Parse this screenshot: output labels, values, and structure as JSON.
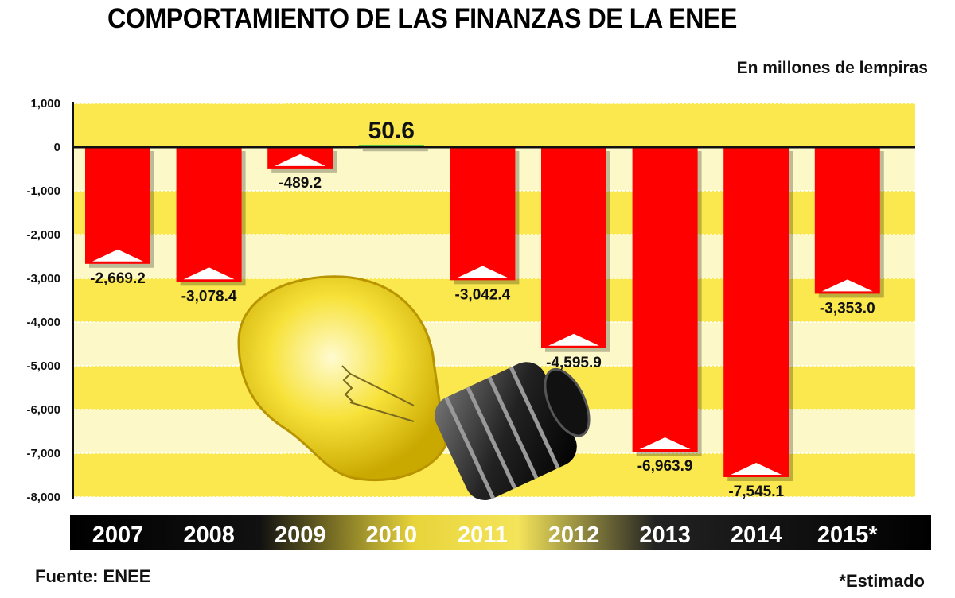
{
  "title": "COMPORTAMIENTO DE LAS FINANZAS DE LA ENEE",
  "units": "En millones de lempiras",
  "source": "Fuente: ENEE",
  "note": "*Estimado",
  "chart_data": {
    "type": "bar",
    "title": "COMPORTAMIENTO DE LAS FINANZAS DE LA ENEE",
    "subtitle": "En millones de lempiras",
    "categories": [
      "2007",
      "2008",
      "2009",
      "2010",
      "2011",
      "2012",
      "2013",
      "2014",
      "2015*"
    ],
    "values": [
      -2669.2,
      -3078.4,
      -489.2,
      50.6,
      -3042.4,
      -4595.9,
      -6963.9,
      -7545.1,
      -3353.0
    ],
    "data_labels": [
      "-2,669.2",
      "-3,078.4",
      "-489.2",
      "50.6",
      "-3,042.4",
      "-4,595.9",
      "-6,963.9",
      "-7,545.1",
      "-3,353.0"
    ],
    "ylim": [
      -8000,
      1000
    ],
    "yticks": [
      1000,
      0,
      -1000,
      -2000,
      -3000,
      -4000,
      -5000,
      -6000,
      -7000,
      -8000
    ],
    "ytick_labels": [
      "1,000",
      "0",
      "-1,000",
      "-2,000",
      "-3,000",
      "-4,000",
      "-5,000",
      "-6,000",
      "-7,000",
      "-8,000"
    ],
    "grid": true,
    "colors": {
      "negative": "#ff0000",
      "positive": "#2db84a",
      "band_dark": "#fbe84e",
      "band_light": "#fdf8c8"
    }
  }
}
